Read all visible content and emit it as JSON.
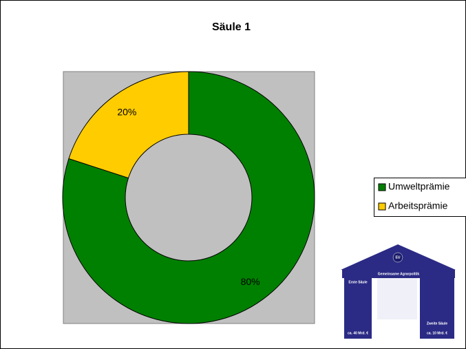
{
  "chart_data": {
    "type": "donut",
    "title": "Säule 1",
    "categories": [
      "Umweltprämie",
      "Arbeitsprämie"
    ],
    "values": [
      80,
      20
    ],
    "value_labels": [
      "80%",
      "20%"
    ],
    "colors": [
      "#008000",
      "#ffcc00"
    ],
    "legend": "right"
  },
  "illustration": {
    "badge": "EU",
    "banner": "Gemeinsame Agrarpolitik",
    "left_pillar": "Erste Säule",
    "right_pillar": "Zweite Säule",
    "left_base": "ca. 40 Mrd. €",
    "right_base": "ca. 10 Mrd. €"
  }
}
